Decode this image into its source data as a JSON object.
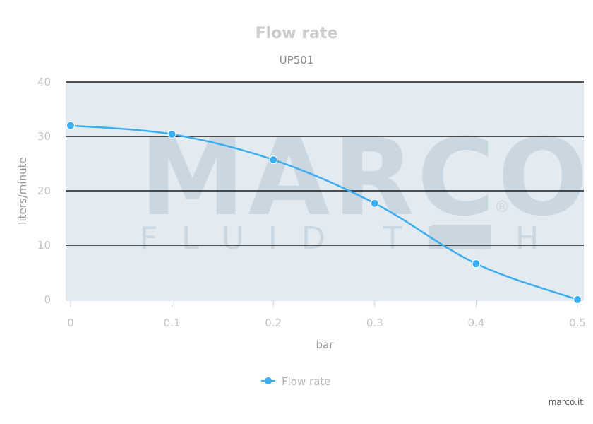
{
  "chart_data": {
    "type": "line",
    "title": "Flow rate",
    "subtitle": "UP501",
    "xlabel": "bar",
    "ylabel": "liters/minute",
    "x": [
      0,
      0.1,
      0.2,
      0.3,
      0.4,
      0.5
    ],
    "x_tick_labels": [
      "0",
      "0.1",
      "0.2",
      "0.3",
      "0.4",
      "0.5"
    ],
    "y_tick_labels": [
      "0",
      "10",
      "20",
      "30",
      "40"
    ],
    "xlim": [
      0,
      0.5
    ],
    "ylim": [
      0,
      40
    ],
    "grid": true,
    "legend_position": "bottom-center",
    "series": [
      {
        "name": "Flow rate",
        "values": [
          32,
          30.4,
          25.7,
          17.7,
          6.6,
          0
        ],
        "color": "#3aaef0"
      }
    ],
    "plot_background": "#e3eaf0"
  },
  "watermark": {
    "brand": "MARCO",
    "tagline": "FLUID TECH",
    "mark": "®"
  },
  "credit": "marco.it"
}
